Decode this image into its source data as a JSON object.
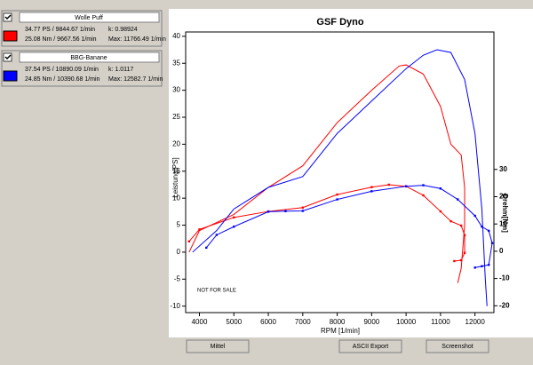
{
  "panels": [
    {
      "name": "Wolle Puff",
      "color": "#ff0000",
      "power": "34.77 PS / 9844.67 1/min",
      "k": "k: 0.98924",
      "torque": "25.08 Nm / 9667.56 1/min",
      "max": "Max: 11766.49 1/min"
    },
    {
      "name": "BBG-Banane",
      "color": "#0000ff",
      "power": "37.54 PS / 10890.09 1/min",
      "k": "k: 1.0117",
      "torque": "24.85 Nm / 10390.68 1/min",
      "max": "Max: 12582.7 1/min"
    }
  ],
  "buttons": [
    "Mittel",
    "ASCII Export",
    "Screenshot"
  ],
  "chart_data": {
    "type": "line",
    "title": "GSF Dyno",
    "x_label": "RPM [1/min]",
    "y_label": "Leistung[PS]",
    "y2_label": "Drehm[Nm]",
    "annotation": "NOT FOR SALE",
    "xlim": [
      3600,
      12550
    ],
    "xticks": [
      4000,
      5000,
      6000,
      7000,
      8000,
      9000,
      10000,
      11000,
      12000
    ],
    "ylim": [
      -11.2,
      40.8
    ],
    "yticks": [
      -10,
      -5,
      0,
      5,
      10,
      15,
      20,
      25,
      30,
      35,
      40
    ],
    "y2lim": [
      -22.5,
      80.4
    ],
    "y2ticks": [
      -20,
      -10,
      0,
      10,
      20,
      30
    ],
    "series": [
      {
        "color": "#ff0000",
        "markers": false,
        "x": [
          3700,
          4000,
          5000,
          6000,
          7000,
          8000,
          9000,
          9800,
          10000,
          10500,
          11000,
          11300,
          11600,
          11700,
          11700,
          11600,
          11500
        ],
        "values": [
          0,
          4,
          7,
          12,
          16,
          24,
          30,
          34.5,
          34.7,
          33,
          27,
          20,
          18,
          12,
          5,
          -3,
          -5.7
        ]
      },
      {
        "color": "#ff0000",
        "markers": true,
        "axis": "y2",
        "x": [
          3700,
          4000,
          5000,
          6000,
          7000,
          8000,
          9000,
          9500,
          10000,
          10500,
          11000,
          11300,
          11600,
          11700,
          11700,
          11600,
          11400
        ],
        "values": [
          3.6,
          8,
          12.4,
          14.6,
          16,
          20.8,
          23.5,
          24.4,
          23.8,
          20.5,
          14.6,
          11,
          9.4,
          5.9,
          -0.6,
          -3.3,
          -3.6
        ]
      },
      {
        "color": "#0000ff",
        "markers": false,
        "x": [
          3800,
          4500,
          5000,
          6000,
          7000,
          7500,
          8000,
          9000,
          10000,
          10500,
          10900,
          11300,
          11700,
          12000,
          12200,
          12300,
          12350
        ],
        "values": [
          0,
          4,
          8,
          12,
          14,
          18,
          22,
          28,
          34,
          36.5,
          37.5,
          37,
          32,
          22,
          8,
          -5,
          -10
        ]
      },
      {
        "color": "#0000ff",
        "markers": true,
        "axis": "y2",
        "x": [
          4200,
          4500,
          5000,
          6000,
          6500,
          7000,
          8000,
          9000,
          10000,
          10500,
          11000,
          11500,
          12000,
          12200,
          12400,
          12500,
          12400,
          12200,
          12000
        ],
        "values": [
          1.3,
          6,
          9,
          14.5,
          14.7,
          14.8,
          19,
          22,
          23.8,
          24.2,
          23,
          19,
          13,
          9,
          7.5,
          3,
          -5,
          -5.5,
          -6
        ]
      }
    ]
  }
}
